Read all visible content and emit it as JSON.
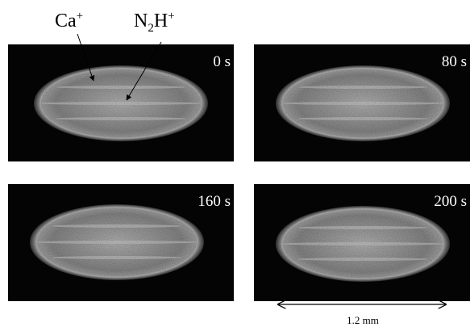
{
  "ion_labels": [
    [
      "Ca",
      "+"
    ],
    [
      "N",
      "2",
      "H",
      "+"
    ]
  ],
  "panels": [
    {
      "time": "0 s"
    },
    {
      "time": "80 s"
    },
    {
      "time": "160 s"
    },
    {
      "time": "200 s"
    }
  ],
  "scale_bar": "1.2 mm"
}
